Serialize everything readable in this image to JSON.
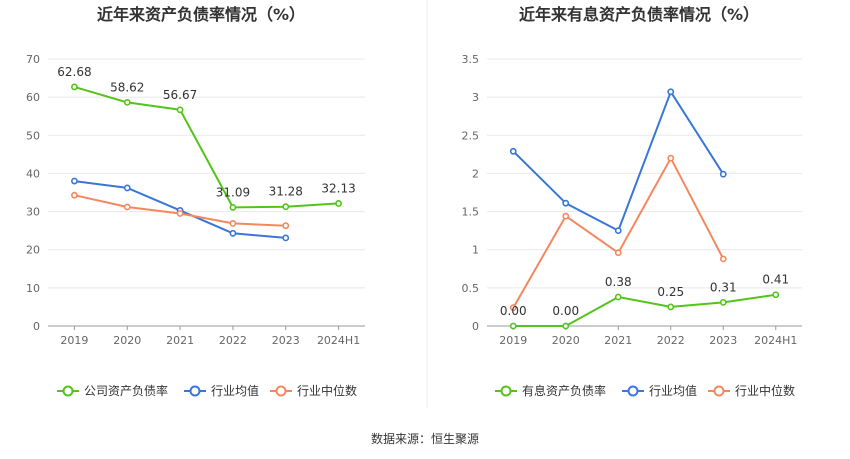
{
  "source": "数据来源：恒生聚源",
  "chart_data": [
    {
      "type": "line",
      "title": "近年来资产负债率情况（%）",
      "categories": [
        "2019",
        "2020",
        "2021",
        "2022",
        "2023",
        "2024H1"
      ],
      "ylim": [
        0,
        70
      ],
      "yticks": [
        "0",
        "10",
        "20",
        "30",
        "40",
        "50",
        "60",
        "70"
      ],
      "ytick_values": [
        0,
        10,
        20,
        30,
        40,
        50,
        60,
        70
      ],
      "grid": true,
      "legend_position": "bottom",
      "series": [
        {
          "name": "公司资产负债率",
          "color": "#52c41a",
          "values": [
            62.68,
            58.62,
            56.67,
            31.09,
            31.28,
            32.13
          ],
          "labels": [
            "62.68",
            "58.62",
            "56.67",
            "31.09",
            "31.28",
            "32.13"
          ]
        },
        {
          "name": "行业均值",
          "color": "#3a76d8",
          "values": [
            38.0,
            36.2,
            30.3,
            24.3,
            23.1,
            null
          ]
        },
        {
          "name": "行业中位数",
          "color": "#f5875f",
          "values": [
            34.3,
            31.2,
            29.5,
            26.9,
            26.3,
            null
          ]
        }
      ]
    },
    {
      "type": "line",
      "title": "近年来有息资产负债率情况（%）",
      "categories": [
        "2019",
        "2020",
        "2021",
        "2022",
        "2023",
        "2024H1"
      ],
      "ylim": [
        0,
        3.5
      ],
      "yticks": [
        "0",
        "0.5",
        "1",
        "1.5",
        "2",
        "2.5",
        "3",
        "3.5"
      ],
      "ytick_values": [
        0,
        0.5,
        1,
        1.5,
        2,
        2.5,
        3,
        3.5
      ],
      "grid": true,
      "legend_position": "bottom",
      "series": [
        {
          "name": "有息资产负债率",
          "color": "#52c41a",
          "values": [
            0.0,
            0.0,
            0.38,
            0.25,
            0.31,
            0.41
          ],
          "labels": [
            "0.00",
            "0.00",
            "0.38",
            "0.25",
            "0.31",
            "0.41"
          ]
        },
        {
          "name": "行业均值",
          "color": "#3a76d8",
          "values": [
            2.29,
            1.61,
            1.25,
            3.07,
            1.99,
            null
          ]
        },
        {
          "name": "行业中位数",
          "color": "#f5875f",
          "values": [
            0.24,
            1.44,
            0.96,
            2.2,
            0.88,
            null
          ]
        }
      ]
    }
  ]
}
